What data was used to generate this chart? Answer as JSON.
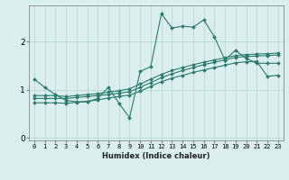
{
  "xlabel": "Humidex (Indice chaleur)",
  "ylabel": "",
  "bg_color": "#daeeed",
  "grid_color": "#b8d8d5",
  "line_color": "#2a7a6e",
  "xlim": [
    -0.5,
    23.5
  ],
  "ylim": [
    -0.05,
    2.75
  ],
  "xticks": [
    0,
    1,
    2,
    3,
    4,
    5,
    6,
    7,
    8,
    9,
    10,
    11,
    12,
    13,
    14,
    15,
    16,
    17,
    18,
    19,
    20,
    21,
    22,
    23
  ],
  "yticks": [
    0,
    1,
    2
  ],
  "curve1_x": [
    0,
    1,
    2,
    3,
    4,
    5,
    6,
    7,
    8,
    9,
    10,
    11,
    12,
    13,
    14,
    15,
    16,
    17,
    18,
    19,
    20,
    21,
    22,
    23
  ],
  "curve1_y": [
    1.22,
    1.05,
    0.9,
    0.78,
    0.75,
    0.75,
    0.82,
    1.05,
    0.72,
    0.42,
    1.38,
    1.48,
    2.58,
    2.28,
    2.32,
    2.3,
    2.45,
    2.1,
    1.62,
    1.82,
    1.65,
    1.55,
    1.55,
    1.55
  ],
  "curve2_x": [
    0,
    1,
    2,
    3,
    4,
    5,
    6,
    7,
    8,
    9,
    10,
    11,
    12,
    13,
    14,
    15,
    16,
    17,
    18,
    19,
    20,
    21,
    22,
    23
  ],
  "curve2_y": [
    0.82,
    0.82,
    0.82,
    0.82,
    0.84,
    0.86,
    0.88,
    0.9,
    0.93,
    0.96,
    1.05,
    1.15,
    1.25,
    1.33,
    1.4,
    1.46,
    1.52,
    1.57,
    1.62,
    1.67,
    1.69,
    1.7,
    1.71,
    1.72
  ],
  "curve3_x": [
    0,
    1,
    2,
    3,
    4,
    5,
    6,
    7,
    8,
    9,
    10,
    11,
    12,
    13,
    14,
    15,
    16,
    17,
    18,
    19,
    20,
    21,
    22,
    23
  ],
  "curve3_y": [
    0.88,
    0.88,
    0.88,
    0.86,
    0.88,
    0.9,
    0.92,
    0.95,
    0.98,
    1.02,
    1.12,
    1.22,
    1.32,
    1.4,
    1.46,
    1.52,
    1.57,
    1.62,
    1.66,
    1.71,
    1.73,
    1.74,
    1.75,
    1.76
  ],
  "curve4_x": [
    0,
    1,
    2,
    3,
    4,
    5,
    6,
    7,
    8,
    9,
    10,
    11,
    12,
    13,
    14,
    15,
    16,
    17,
    18,
    19,
    20,
    21,
    22,
    23
  ],
  "curve4_y": [
    0.73,
    0.73,
    0.73,
    0.72,
    0.74,
    0.76,
    0.79,
    0.83,
    0.86,
    0.89,
    0.97,
    1.07,
    1.17,
    1.24,
    1.3,
    1.36,
    1.41,
    1.46,
    1.51,
    1.56,
    1.58,
    1.59,
    1.28,
    1.3
  ]
}
